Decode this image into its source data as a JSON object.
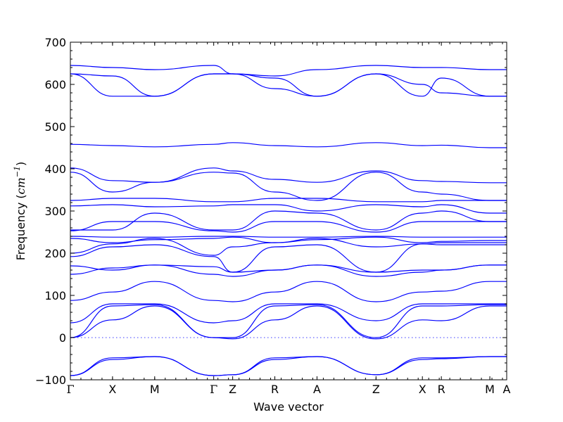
{
  "chart_data": {
    "type": "line",
    "title": "",
    "xlabel": "Wave vector",
    "ylabel": "Frequency (cm⁻¹)",
    "ylabel_text": "Frequency",
    "ylabel_unit": "cm",
    "ylabel_exp": "−1",
    "ylim": [
      -100,
      700
    ],
    "y_ticks": [
      -100,
      0,
      100,
      200,
      300,
      400,
      500,
      600,
      700
    ],
    "y_minor_step": 20,
    "grid": false,
    "legend": "none",
    "colors": {
      "bands": "#0000ff",
      "zero_line": "#3b3bff"
    },
    "xlim": [
      0,
      10.35
    ],
    "x_ticks": [
      {
        "label": "Γ",
        "x": 0
      },
      {
        "label": "X",
        "x": 1
      },
      {
        "label": "M",
        "x": 2
      },
      {
        "label": "Γ",
        "x": 3.4
      },
      {
        "label": "Z",
        "x": 3.85
      },
      {
        "label": "R",
        "x": 4.85
      },
      {
        "label": "A",
        "x": 5.85
      },
      {
        "label": "Z",
        "x": 7.25
      },
      {
        "label": "X",
        "x": 8.35
      },
      {
        "label": "R",
        "x": 8.8
      },
      {
        "label": "M",
        "x": 9.95
      },
      {
        "label": "A",
        "x": 10.35
      }
    ],
    "zero_reference": 0,
    "series": [
      {
        "y": [
          645,
          640,
          635,
          645,
          625,
          620,
          635,
          645,
          640,
          640,
          635,
          635
        ]
      },
      {
        "y": [
          625,
          620,
          572,
          625,
          625,
          615,
          572,
          625,
          572,
          615,
          572,
          572
        ]
      },
      {
        "y": [
          625,
          572,
          572,
          625,
          625,
          590,
          572,
          625,
          600,
          580,
          572,
          572
        ]
      },
      {
        "y": [
          458,
          455,
          452,
          458,
          462,
          455,
          452,
          462,
          455,
          456,
          450,
          450
        ]
      },
      {
        "y": [
          402,
          372,
          368,
          402,
          395,
          375,
          368,
          395,
          372,
          370,
          367,
          367
        ]
      },
      {
        "y": [
          392,
          345,
          368,
          392,
          390,
          345,
          325,
          392,
          345,
          340,
          325,
          325
        ]
      },
      {
        "y": [
          325,
          330,
          330,
          322,
          322,
          330,
          330,
          322,
          322,
          325,
          325,
          325
        ]
      },
      {
        "y": [
          312,
          315,
          310,
          312,
          315,
          315,
          300,
          315,
          310,
          315,
          295,
          295
        ]
      },
      {
        "y": [
          255,
          255,
          295,
          255,
          255,
          300,
          295,
          255,
          295,
          300,
          275,
          275
        ]
      },
      {
        "y": [
          253,
          275,
          275,
          253,
          250,
          275,
          275,
          250,
          275,
          275,
          275,
          275
        ]
      },
      {
        "y": [
          240,
          238,
          238,
          240,
          240,
          238,
          238,
          240,
          238,
          238,
          238,
          238
        ]
      },
      {
        "y": [
          235,
          225,
          232,
          235,
          238,
          225,
          232,
          238,
          225,
          228,
          230,
          230
        ]
      },
      {
        "y": [
          200,
          222,
          235,
          195,
          215,
          225,
          235,
          215,
          222,
          225,
          225,
          225
        ]
      },
      {
        "y": [
          192,
          215,
          220,
          192,
          155,
          215,
          220,
          155,
          222,
          220,
          220,
          220
        ]
      },
      {
        "y": [
          170,
          160,
          172,
          168,
          155,
          160,
          172,
          155,
          160,
          160,
          172,
          172
        ]
      },
      {
        "y": [
          150,
          165,
          172,
          150,
          145,
          160,
          172,
          145,
          155,
          160,
          172,
          172
        ]
      },
      {
        "y": [
          88,
          108,
          133,
          88,
          85,
          108,
          133,
          85,
          108,
          110,
          133,
          133
        ]
      },
      {
        "y": [
          35,
          80,
          80,
          35,
          40,
          80,
          80,
          40,
          80,
          80,
          80,
          80
        ]
      },
      {
        "y": [
          0,
          75,
          78,
          0,
          0,
          75,
          78,
          0,
          75,
          75,
          78,
          78
        ]
      },
      {
        "y": [
          0,
          42,
          75,
          0,
          -3,
          42,
          75,
          -3,
          42,
          40,
          75,
          75
        ]
      },
      {
        "y": [
          -90,
          -48,
          -45,
          -90,
          -88,
          -48,
          -45,
          -88,
          -48,
          -48,
          -45,
          -45
        ]
      },
      {
        "y": [
          -90,
          -52,
          -45,
          -90,
          -88,
          -52,
          -45,
          -88,
          -52,
          -50,
          -45,
          -45
        ]
      }
    ]
  }
}
